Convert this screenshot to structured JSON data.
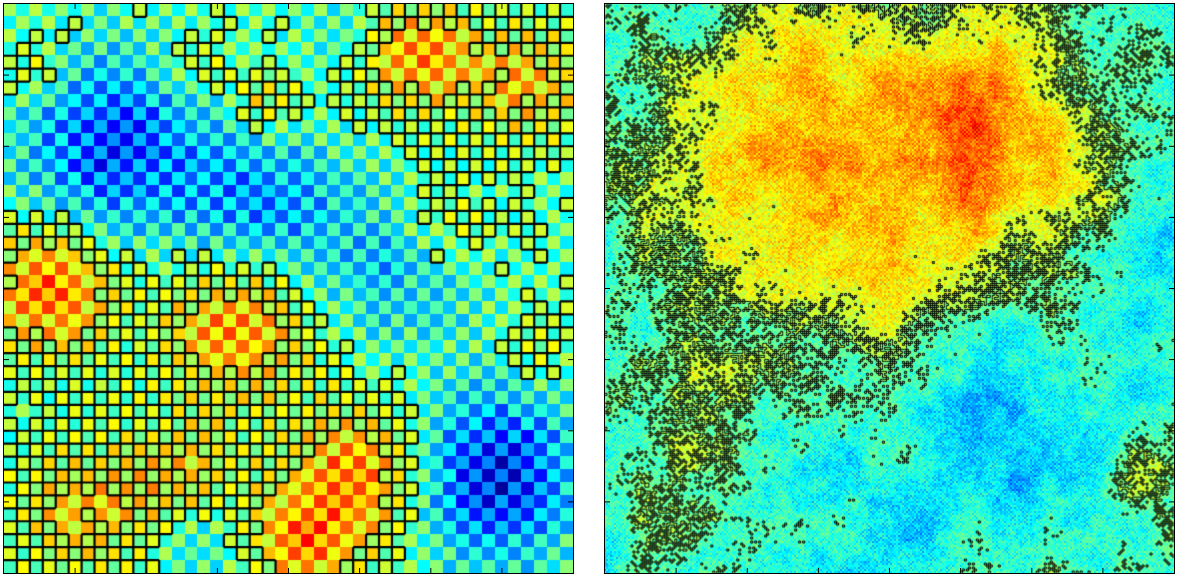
{
  "figure": {
    "panels": [
      {
        "id": "left",
        "grid_cells": 44,
        "colormap": "jet",
        "features": [
          "checkerboard-pattern",
          "black-level-set-contours"
        ]
      },
      {
        "id": "right",
        "grid_cells": 285,
        "colormap": "jet",
        "features": [
          "random-field",
          "black-level-set-contours"
        ]
      }
    ],
    "colors": {
      "dark-blue": "#0000aa",
      "blue": "#0040ff",
      "cyan": "#00e5ff",
      "green": "#80ff80",
      "yellow": "#ffd200",
      "red": "#ff1a00",
      "dark-red": "#800000",
      "contour": "#000000"
    }
  }
}
